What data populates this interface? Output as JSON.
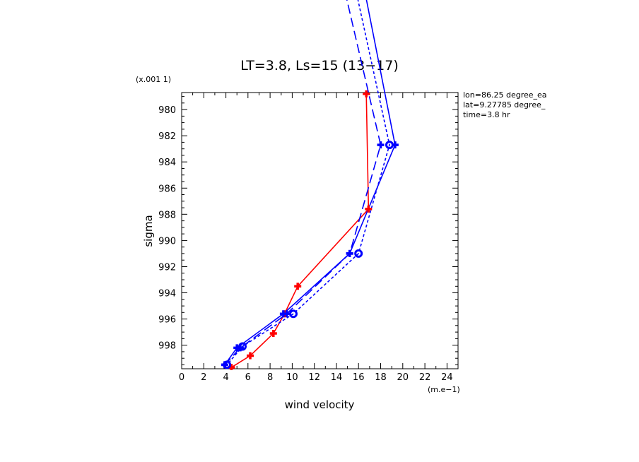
{
  "chart_data": {
    "type": "line",
    "title": "LT=3.8, Ls=15 (13−17)",
    "xlabel": "wind velocity",
    "ylabel": "sigma",
    "x_unit": "(m.e−1)",
    "y_unit": "(x.001 1)",
    "xlim": [
      0,
      25
    ],
    "ylim": [
      999.8,
      978.7
    ],
    "x_ticks": [
      "0",
      "2",
      "4",
      "6",
      "8",
      "10",
      "12",
      "14",
      "16",
      "18",
      "20",
      "22",
      "24"
    ],
    "y_ticks": [
      "980",
      "982",
      "984",
      "986",
      "988",
      "990",
      "992",
      "994",
      "996",
      "998"
    ],
    "info_lines": [
      "lon=86.25 degree_ea",
      "lat=9.27785 degree_",
      "time=3.8 hr"
    ],
    "series": [
      {
        "color": "#ff0000",
        "line": "solid",
        "marker": "plus",
        "points": [
          [
            16.7,
            978.8
          ],
          [
            16.9,
            987.6
          ],
          [
            10.5,
            993.5
          ],
          [
            9.3,
            995.6
          ],
          [
            8.3,
            997.1
          ],
          [
            6.2,
            998.8
          ],
          [
            4.5,
            999.7
          ]
        ]
      },
      {
        "color": "#0000ff",
        "line": "solid",
        "marker": "plus",
        "points": [
          [
            15.4,
            966.0
          ],
          [
            19.3,
            982.7
          ],
          [
            15.2,
            991.0
          ],
          [
            9.2,
            995.6
          ],
          [
            5.0,
            998.2
          ],
          [
            3.9,
            999.5
          ]
        ]
      },
      {
        "color": "#0000ff",
        "line": "short-dash",
        "marker": "circle",
        "points": [
          [
            14.5,
            966.0
          ],
          [
            18.8,
            982.7
          ],
          [
            16.0,
            991.0
          ],
          [
            10.1,
            995.6
          ],
          [
            5.5,
            998.1
          ],
          [
            4.1,
            999.5
          ]
        ]
      },
      {
        "color": "#0000ff",
        "line": "long-dash",
        "marker": "plus",
        "points": [
          [
            13.4,
            966.0
          ],
          [
            18.0,
            982.7
          ],
          [
            15.2,
            991.0
          ],
          [
            9.5,
            995.6
          ],
          [
            5.3,
            998.2
          ],
          [
            3.9,
            999.5
          ]
        ]
      }
    ]
  }
}
